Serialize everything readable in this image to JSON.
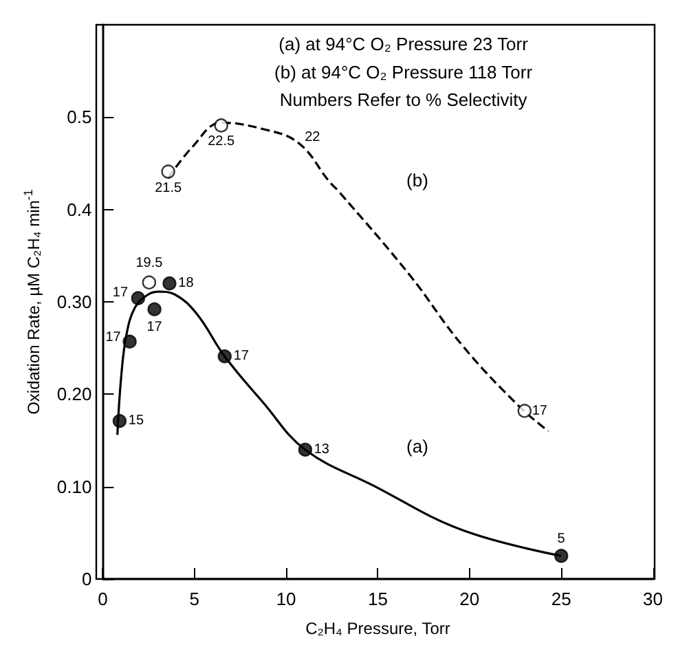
{
  "chart_data": {
    "type": "scatter",
    "xlabel": "C₂H₄ Pressure, Torr",
    "ylabel": "Oxidation Rate, µM C₂H₄ min$^{-1}$",
    "annotations": [
      "(a) at 94°C O₂ Pressure 23 Torr",
      "(b) at 94°C O₂ Pressure 118 Torr",
      "Numbers Refer to % Selectivity",
      "(a)",
      "(b)",
      {
        "text": "15",
        "x": 0.92,
        "y": 0.171
      },
      {
        "text": "17",
        "x": 1.47,
        "y": 0.257
      },
      {
        "text": "17",
        "x": 1.93,
        "y": 0.304
      },
      {
        "text": "17",
        "x": 2.82,
        "y": 0.292
      },
      {
        "text": "18",
        "x": 3.64,
        "y": 0.32
      },
      {
        "text": "17",
        "x": 6.65,
        "y": 0.241
      },
      {
        "text": "13",
        "x": 11.04,
        "y": 0.14
      },
      {
        "text": "5",
        "x": 25,
        "y": 0.025
      },
      {
        "text": "19.5",
        "x": 2.53,
        "y": 0.321
      },
      {
        "text": "21.5",
        "x": 3.57,
        "y": 0.441
      },
      {
        "text": "22.5",
        "x": 6.46,
        "y": 0.491
      },
      {
        "text": "22",
        "x": 10.68,
        "y": 0.472
      },
      {
        "text": "17",
        "x": 23,
        "y": 0.182
      }
    ],
    "xlim": [
      0,
      30
    ],
    "xticks": [
      0,
      5,
      10,
      15,
      20,
      25,
      30
    ],
    "ylim": [
      0,
      0.6
    ],
    "yticks": [
      0,
      {
        "value": 0.1,
        "label": "0.10"
      },
      {
        "value": 0.2,
        "label": "0.20"
      },
      {
        "value": 0.3,
        "label": "0.30"
      },
      0.4,
      0.5
    ],
    "grid": false,
    "series": [
      {
        "type": "line",
        "line_style": "solid",
        "marker": "none",
        "color": "#000000",
        "x": [
          0.8,
          0.99,
          1.28,
          1.76,
          2.48,
          3.08,
          3.93,
          5.13,
          6.65,
          8.75,
          11.04,
          14.77,
          19.6,
          25
        ],
        "values": [
          0.156,
          0.215,
          0.263,
          0.294,
          0.308,
          0.311,
          0.308,
          0.287,
          0.241,
          0.191,
          0.14,
          0.101,
          0.053,
          0.025
        ]
      },
      {
        "type": "line",
        "line_style": "dashed",
        "marker": "none",
        "color": "#000000",
        "x": [
          3.57,
          4.9,
          6.46,
          8.75,
          10.68,
          12.36,
          12.85,
          16.7,
          19.6,
          22.7,
          24.3
        ],
        "values": [
          0.434,
          0.468,
          0.494,
          0.487,
          0.472,
          0.43,
          0.42,
          0.33,
          0.253,
          0.187,
          0.16
        ]
      },
      {
        "marker": "circle",
        "color": "#000000",
        "x": [
          0.92,
          1.47,
          1.93,
          2.82,
          3.64,
          6.65,
          11.04,
          25
        ],
        "values": [
          0.171,
          0.257,
          0.304,
          0.292,
          0.32,
          0.241,
          0.14,
          0.025
        ]
      },
      {
        "marker": "circle",
        "color": "#ffffff",
        "x": [
          2.53,
          3.57,
          6.46,
          23
        ],
        "values": [
          0.321,
          0.441,
          0.491,
          0.182
        ]
      }
    ]
  }
}
